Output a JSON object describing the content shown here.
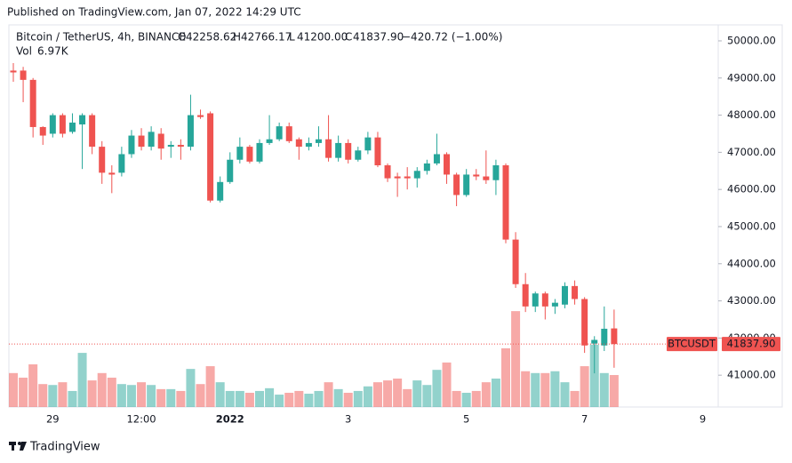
{
  "header": "Published on TradingView.com, Jan 07, 2022 14:29 UTC",
  "footer": "TradingView",
  "chart_data": {
    "type": "candlestick",
    "symbol": "Bitcoin / TetherUS, 4h, BINANCE",
    "symbol_badge": "BTCUSDT",
    "last": {
      "open": {
        "key": "O",
        "text": "42258.62"
      },
      "high": {
        "key": "H",
        "text": "42766.17"
      },
      "low": {
        "key": "L",
        "text": "41200.00"
      },
      "close": {
        "key": "C",
        "text": "41837.90"
      },
      "change": "−420.72 (−1.00%)",
      "volume_key": "Vol",
      "volume_text": "6.97K"
    },
    "up_color": "#26a69a",
    "down_color": "#ef5350",
    "categories": [
      null,
      null,
      null,
      null,
      "29",
      null,
      null,
      null,
      null,
      null,
      null,
      null,
      null,
      "12:00",
      null,
      null,
      null,
      null,
      null,
      null,
      null,
      null,
      "2022",
      null,
      null,
      null,
      null,
      null,
      null,
      null,
      null,
      null,
      null,
      null,
      "3",
      null,
      null,
      null,
      null,
      null,
      null,
      null,
      null,
      null,
      null,
      null,
      "5",
      null,
      null,
      null,
      null,
      null,
      null,
      null,
      null,
      null,
      null,
      null,
      "7",
      null,
      null,
      null,
      null,
      null,
      null,
      null,
      null,
      null,
      null,
      null,
      "9"
    ],
    "open": [
      49200,
      49200,
      48950,
      47680,
      47500,
      48000,
      47550,
      47750,
      48000,
      47150,
      46450,
      46450,
      46950,
      47450,
      47150,
      47500,
      47150,
      47200,
      47150,
      48000,
      48050,
      45700,
      46200,
      46800,
      47150,
      46750,
      47250,
      47350,
      47700,
      47350,
      47150,
      47250,
      47350,
      46850,
      47250,
      46800,
      47050,
      47400,
      46650,
      46350,
      46350,
      46300,
      46500,
      46700,
      46950,
      46400,
      45850,
      46400,
      46350,
      46250,
      46650,
      44650,
      43450,
      42850,
      43200,
      42850,
      42900,
      43400,
      43050,
      41850,
      41800,
      42258.62,
      null,
      null,
      null,
      null,
      null,
      null,
      null,
      null,
      null
    ],
    "high": [
      49400,
      49300,
      49000,
      47700,
      48050,
      48050,
      48050,
      48050,
      48050,
      47300,
      46650,
      47150,
      47600,
      47650,
      47700,
      47650,
      47300,
      47350,
      48550,
      48150,
      48100,
      46350,
      47000,
      47400,
      47200,
      47350,
      48000,
      47800,
      47800,
      47400,
      47400,
      47700,
      48000,
      47450,
      47350,
      47150,
      47550,
      47550,
      46700,
      46450,
      46600,
      46600,
      46800,
      47500,
      47000,
      46450,
      46550,
      46550,
      47050,
      46800,
      46700,
      44850,
      43750,
      43250,
      43250,
      43050,
      43500,
      43550,
      43100,
      42050,
      42850,
      42766.17,
      null,
      null,
      null,
      null,
      null,
      null,
      null,
      null,
      null
    ],
    "low": [
      48900,
      48350,
      47400,
      47200,
      47400,
      47400,
      47500,
      46550,
      46950,
      46150,
      45900,
      46350,
      46850,
      47050,
      47050,
      46800,
      46850,
      46800,
      47050,
      47900,
      45650,
      45650,
      46150,
      46700,
      46700,
      46700,
      47200,
      47300,
      47250,
      46800,
      47050,
      47150,
      46750,
      46750,
      46700,
      46750,
      46950,
      46600,
      46200,
      45800,
      46000,
      46050,
      46400,
      46650,
      46150,
      45550,
      45800,
      46250,
      46150,
      45850,
      44550,
      43350,
      42700,
      42700,
      42500,
      42650,
      42800,
      42900,
      41600,
      41050,
      41650,
      41200,
      null,
      null,
      null,
      null,
      null,
      null,
      null,
      null,
      null
    ],
    "close": [
      49150,
      48950,
      47680,
      47450,
      48000,
      47500,
      47800,
      48000,
      47150,
      46450,
      46400,
      46950,
      47450,
      47150,
      47550,
      47100,
      47200,
      47150,
      48000,
      47950,
      45700,
      46200,
      46800,
      47150,
      46750,
      47250,
      47350,
      47700,
      47300,
      47150,
      47250,
      47350,
      46850,
      47250,
      46800,
      47050,
      47400,
      46650,
      46300,
      46300,
      46300,
      46500,
      46700,
      46950,
      46400,
      45850,
      46400,
      46350,
      46250,
      46650,
      44650,
      43450,
      42850,
      43200,
      42850,
      42950,
      43400,
      43050,
      41800,
      41950,
      42250,
      41837.9,
      null,
      null,
      null,
      null,
      null,
      null,
      null,
      null,
      null
    ],
    "volume": [
      7400,
      6400,
      9300,
      5000,
      4800,
      5400,
      3500,
      11800,
      5800,
      7400,
      6400,
      5000,
      4800,
      5400,
      4800,
      3900,
      3900,
      3500,
      8300,
      5000,
      8900,
      5400,
      3500,
      3500,
      3100,
      3500,
      4100,
      2700,
      3100,
      3500,
      2900,
      3500,
      5400,
      3900,
      3100,
      3500,
      4500,
      5400,
      5800,
      6200,
      3900,
      5800,
      4800,
      8100,
      9700,
      3500,
      3100,
      3500,
      5400,
      6200,
      12800,
      20900,
      7800,
      7400,
      7400,
      7800,
      5400,
      3500,
      8900,
      13600,
      7400,
      6970,
      null,
      null,
      null,
      null,
      null,
      null,
      null,
      null,
      null
    ],
    "volume_ylim": [
      0,
      83300
    ],
    "ylim": [
      40143,
      50430
    ],
    "yticks": [
      {
        "value": 41000,
        "label": "41000.00"
      },
      {
        "value": 42000,
        "label": "42000.00"
      },
      {
        "value": 43000,
        "label": "43000.00"
      },
      {
        "value": 44000,
        "label": "44000.00"
      },
      {
        "value": 45000,
        "label": "45000.00"
      },
      {
        "value": 46000,
        "label": "46000.00"
      },
      {
        "value": 47000,
        "label": "47000.00"
      },
      {
        "value": 48000,
        "label": "48000.00"
      },
      {
        "value": 49000,
        "label": "49000.00"
      },
      {
        "value": 50000,
        "label": "50000.00"
      }
    ],
    "bold_category": "2022"
  }
}
